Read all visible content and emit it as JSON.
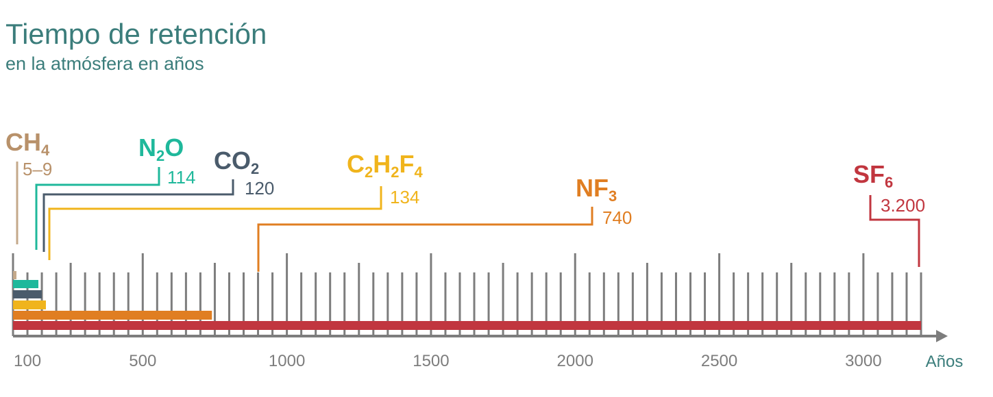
{
  "title": "Tiempo de retención",
  "subtitle": "en la atmósfera en años",
  "chart_data": {
    "type": "bar",
    "orientation": "horizontal",
    "x_unit_label": "Años",
    "x_ticks": [
      100,
      500,
      1000,
      1500,
      2000,
      2500,
      3000
    ],
    "xlim": [
      50,
      3250
    ],
    "series": [
      {
        "base": "CH",
        "sub": "4",
        "value_label": "5–9",
        "value": 9,
        "color": "#c4a98b",
        "name_color": "#b8916a"
      },
      {
        "base": "N",
        "sub": "2",
        "tail": "O",
        "value_label": "114",
        "value": 114,
        "color": "#1fb89b",
        "name_color": "#1fb89b"
      },
      {
        "base": "CO",
        "sub": "2",
        "value_label": "120",
        "value": 120,
        "color": "#4a5b6b",
        "name_color": "#4a5b6b"
      },
      {
        "base": "C",
        "sub": "2",
        "base2": "H",
        "sub2": "2",
        "base3": "F",
        "sub3": "4",
        "value_label": "134",
        "value": 134,
        "color": "#f0b41c",
        "name_color": "#f0b41c"
      },
      {
        "base": "NF",
        "sub": "3",
        "value_label": "740",
        "value": 740,
        "color": "#e07e22",
        "name_color": "#e07e22"
      },
      {
        "base": "SF",
        "sub": "6",
        "value_label": "3.200",
        "value": 3200,
        "color": "#c1363f",
        "name_color": "#c1363f"
      }
    ]
  }
}
